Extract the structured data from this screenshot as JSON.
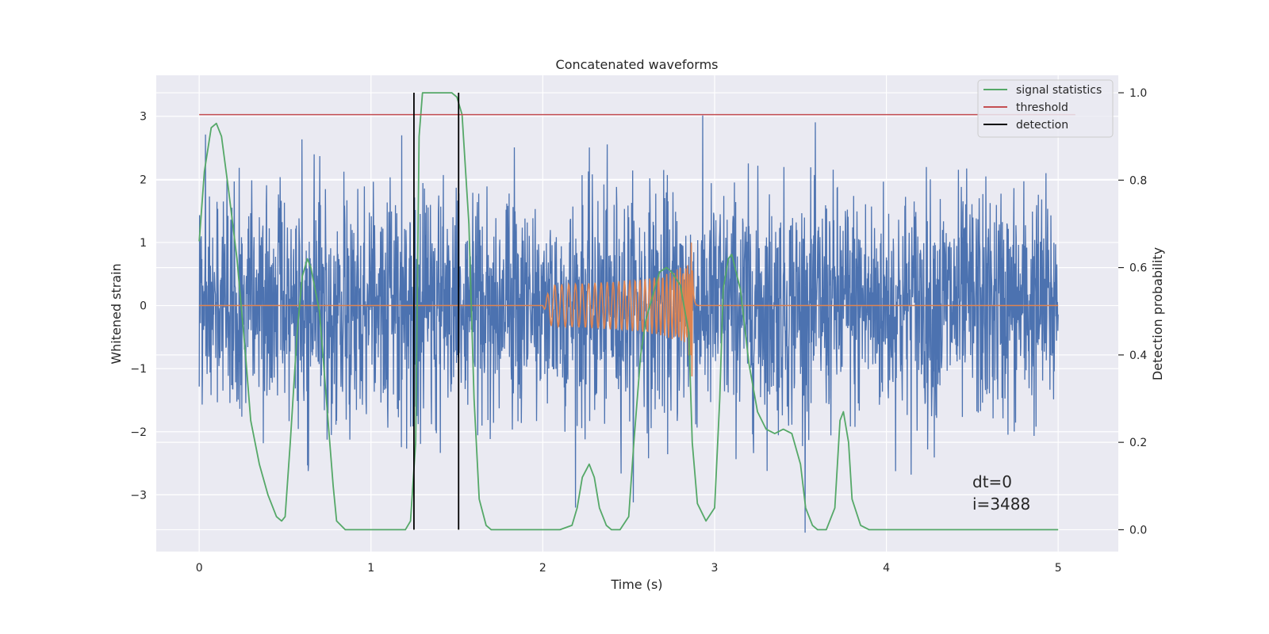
{
  "chart_data": {
    "type": "line",
    "title": "Concatenated waveforms",
    "xlabel": "Time (s)",
    "ylabel": "Whitened strain",
    "ylabel_right": "Detection probability",
    "xlim": [
      -0.25,
      5.35
    ],
    "ylim": [
      -3.9,
      3.65
    ],
    "ylim_right": [
      -0.05,
      1.04
    ],
    "x_ticks": [
      0,
      1,
      2,
      3,
      4,
      5
    ],
    "y_ticks": [
      -3,
      -2,
      -1,
      0,
      1,
      2,
      3
    ],
    "y_ticks_right": [
      0.0,
      0.2,
      0.4,
      0.6,
      0.8,
      1.0
    ],
    "x_tick_labels": [
      "0",
      "1",
      "2",
      "3",
      "4",
      "5"
    ],
    "y_tick_labels": [
      "−3",
      "−2",
      "−1",
      "0",
      "1",
      "2",
      "3"
    ],
    "y_tick_labels_right": [
      "0.0",
      "0.2",
      "0.4",
      "0.6",
      "0.8",
      "1.0"
    ],
    "grid": true,
    "legend_position": "top-right",
    "legend": [
      "signal statistics",
      "threshold",
      "detection"
    ],
    "annotation": [
      "dt=0",
      "i=3488"
    ],
    "colors": {
      "strain": "#4c72b0",
      "template": "#dd8452",
      "signal_statistics": "#55a868",
      "threshold": "#c44e52",
      "detection": "#000000",
      "plot_background": "#eaeaf2",
      "grid": "#ffffff"
    },
    "series": [
      {
        "name": "signal statistics",
        "axis": "right",
        "x": [
          0,
          0.03,
          0.07,
          0.1,
          0.13,
          0.17,
          0.22,
          0.27,
          0.3,
          0.35,
          0.4,
          0.45,
          0.48,
          0.5,
          0.53,
          0.57,
          0.6,
          0.63,
          0.65,
          0.7,
          0.75,
          0.78,
          0.8,
          0.85,
          0.9,
          1.0,
          1.1,
          1.2,
          1.23,
          1.26,
          1.28,
          1.3,
          1.4,
          1.47,
          1.5,
          1.53,
          1.57,
          1.6,
          1.63,
          1.67,
          1.7,
          1.8,
          1.9,
          2.0,
          2.1,
          2.17,
          2.2,
          2.23,
          2.27,
          2.3,
          2.33,
          2.37,
          2.4,
          2.45,
          2.5,
          2.53,
          2.57,
          2.6,
          2.65,
          2.68,
          2.72,
          2.75,
          2.8,
          2.85,
          2.87,
          2.9,
          2.95,
          3.0,
          3.03,
          3.05,
          3.08,
          3.1,
          3.15,
          3.2,
          3.25,
          3.3,
          3.35,
          3.4,
          3.45,
          3.5,
          3.53,
          3.57,
          3.6,
          3.65,
          3.7,
          3.73,
          3.75,
          3.78,
          3.8,
          3.85,
          3.9,
          4.0,
          4.2,
          4.5,
          4.8,
          5.0
        ],
        "values": [
          0.66,
          0.82,
          0.92,
          0.93,
          0.9,
          0.78,
          0.62,
          0.4,
          0.25,
          0.15,
          0.08,
          0.03,
          0.02,
          0.03,
          0.2,
          0.45,
          0.58,
          0.62,
          0.6,
          0.5,
          0.25,
          0.1,
          0.02,
          0.0,
          0.0,
          0.0,
          0.0,
          0.0,
          0.02,
          0.2,
          0.9,
          1.0,
          1.0,
          1.0,
          0.99,
          0.95,
          0.7,
          0.3,
          0.07,
          0.01,
          0.0,
          0.0,
          0.0,
          0.0,
          0.0,
          0.01,
          0.05,
          0.12,
          0.15,
          0.12,
          0.05,
          0.01,
          0.0,
          0.0,
          0.03,
          0.2,
          0.4,
          0.48,
          0.55,
          0.59,
          0.6,
          0.59,
          0.56,
          0.45,
          0.2,
          0.06,
          0.02,
          0.05,
          0.3,
          0.55,
          0.62,
          0.63,
          0.55,
          0.38,
          0.27,
          0.23,
          0.22,
          0.23,
          0.22,
          0.15,
          0.05,
          0.01,
          0.0,
          0.0,
          0.05,
          0.25,
          0.27,
          0.2,
          0.07,
          0.01,
          0.0,
          0.0,
          0.0,
          0.0,
          0.0,
          0.0
        ]
      },
      {
        "name": "threshold",
        "axis": "right",
        "x": [
          0,
          5.1
        ],
        "values": [
          0.95,
          0.95
        ]
      },
      {
        "name": "detection",
        "axis": "right",
        "x": [
          1.25,
          1.51
        ],
        "values": [
          0.0,
          1.0
        ]
      }
    ],
    "strain_envelope": {
      "x": [
        0,
        5
      ],
      "typical_range": [
        -2.2,
        2.3
      ],
      "peak_max": 3.3,
      "peak_min": -3.6
    },
    "template_chirp": {
      "x_start": 2.0,
      "x_merger": 2.87,
      "x_end": 2.9,
      "peak_amplitude": 1.25
    }
  }
}
